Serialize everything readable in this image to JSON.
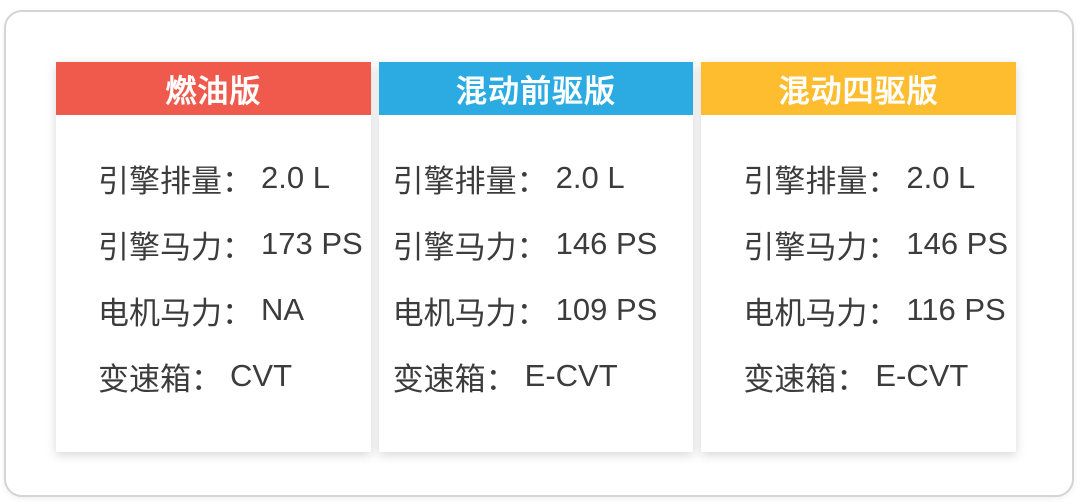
{
  "colors": {
    "fuel_header": "#ef5a4c",
    "hybrid_fwd_header": "#2babe2",
    "hybrid_awd_header": "#fdbd2f",
    "body_text": "#3c3c3c",
    "frame_border": "#d4d4d4",
    "card_background": "#ffffff"
  },
  "table": {
    "columns": [
      {
        "header": "燃油版",
        "header_color": "#ef5a4c",
        "rows": [
          {
            "label": "引擎排量：",
            "value": "2.0 L"
          },
          {
            "label": "引擎马力：",
            "value": "173 PS"
          },
          {
            "label": "电机马力：",
            "value": "NA"
          },
          {
            "label": "变速箱：",
            "value": "CVT"
          }
        ]
      },
      {
        "header": "混动前驱版",
        "header_color": "#2babe2",
        "rows": [
          {
            "label": "引擎排量：",
            "value": "2.0 L"
          },
          {
            "label": "引擎马力：",
            "value": "146 PS"
          },
          {
            "label": "电机马力：",
            "value": "109 PS"
          },
          {
            "label": "变速箱：",
            "value": "E-CVT"
          }
        ]
      },
      {
        "header": "混动四驱版",
        "header_color": "#fdbd2f",
        "rows": [
          {
            "label": "引擎排量：",
            "value": "2.0 L"
          },
          {
            "label": "引擎马力：",
            "value": "146 PS"
          },
          {
            "label": "电机马力：",
            "value": "116 PS"
          },
          {
            "label": "变速箱：",
            "value": "E-CVT"
          }
        ]
      }
    ]
  },
  "chart_data": {
    "type": "table",
    "title": "",
    "columns": [
      "燃油版",
      "混动前驱版",
      "混动四驱版"
    ],
    "row_labels": [
      "引擎排量",
      "引擎马力",
      "电机马力",
      "变速箱"
    ],
    "series": [
      {
        "name": "燃油版",
        "values": [
          "2.0 L",
          "173 PS",
          "NA",
          "CVT"
        ]
      },
      {
        "name": "混动前驱版",
        "values": [
          "2.0 L",
          "146 PS",
          "109 PS",
          "E-CVT"
        ]
      },
      {
        "name": "混动四驱版",
        "values": [
          "2.0 L",
          "146 PS",
          "116 PS",
          "E-CVT"
        ]
      }
    ],
    "header_colors": [
      "#ef5a4c",
      "#2babe2",
      "#fdbd2f"
    ]
  }
}
